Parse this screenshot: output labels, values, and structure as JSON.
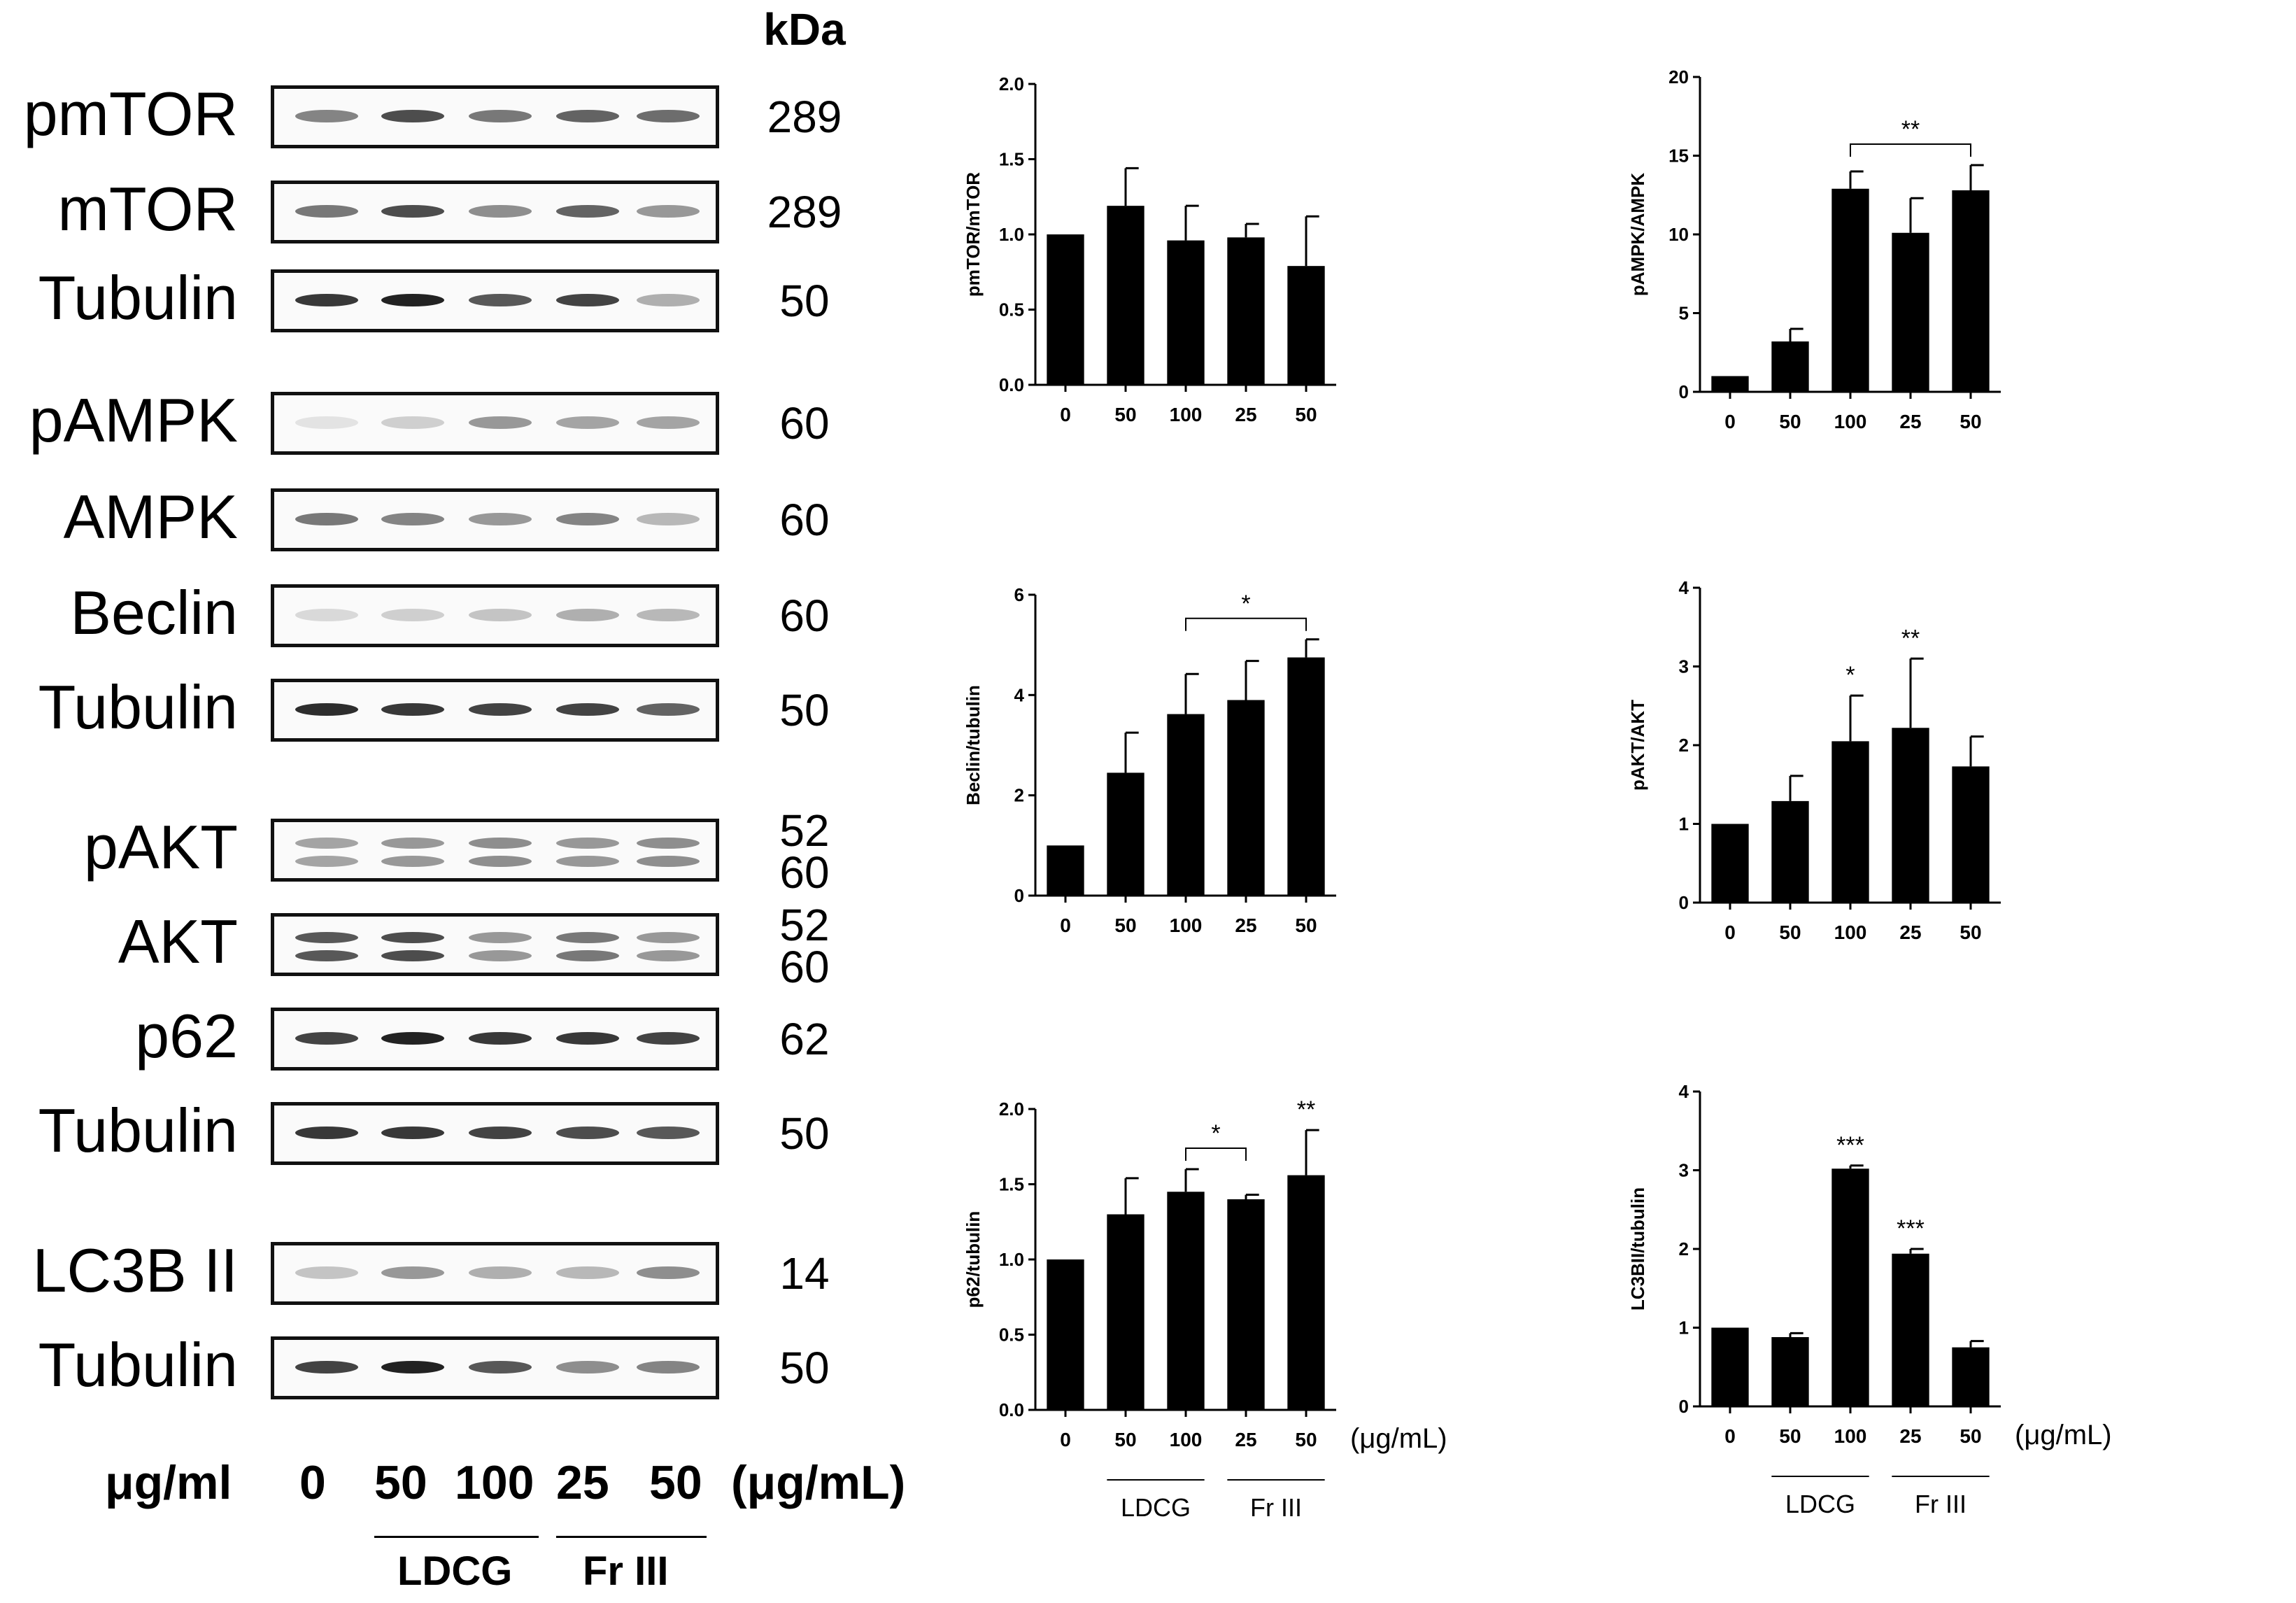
{
  "kda_header": "kDa",
  "blots": [
    {
      "label": "pmTOR",
      "kda": "289",
      "bands": 1
    },
    {
      "label": "mTOR",
      "kda": "289",
      "bands": 1
    },
    {
      "label": "Tubulin",
      "kda": "50",
      "bands": 1
    },
    {
      "label": "pAMPK",
      "kda": "60",
      "bands": 1
    },
    {
      "label": "AMPK",
      "kda": "60",
      "bands": 1
    },
    {
      "label": "Beclin",
      "kda": "60",
      "bands": 1
    },
    {
      "label": "Tubulin",
      "kda": "50",
      "bands": 1
    },
    {
      "label": "pAKT",
      "kda": "52",
      "kda2": "60",
      "bands": 2
    },
    {
      "label": "AKT",
      "kda": "52",
      "kda2": "60",
      "bands": 2
    },
    {
      "label": "p62",
      "kda": "62",
      "bands": 1
    },
    {
      "label": "Tubulin",
      "kda": "50",
      "bands": 1
    },
    {
      "label": "LC3B II",
      "kda": "14",
      "bands": 1
    },
    {
      "label": "Tubulin",
      "kda": "50",
      "bands": 1
    }
  ],
  "blot_intensity": [
    [
      0.55,
      0.8,
      0.6,
      0.7,
      0.65
    ],
    [
      0.6,
      0.8,
      0.5,
      0.7,
      0.45
    ],
    [
      0.9,
      1.0,
      0.75,
      0.85,
      0.35
    ],
    [
      0.1,
      0.2,
      0.45,
      0.4,
      0.4
    ],
    [
      0.6,
      0.55,
      0.45,
      0.55,
      0.3
    ],
    [
      0.15,
      0.2,
      0.25,
      0.35,
      0.3
    ],
    [
      0.95,
      0.9,
      0.85,
      0.85,
      0.7
    ],
    [
      0.4,
      0.45,
      0.5,
      0.45,
      0.5
    ],
    [
      0.75,
      0.8,
      0.45,
      0.6,
      0.45
    ],
    [
      0.85,
      1.0,
      0.9,
      0.9,
      0.85
    ],
    [
      0.9,
      0.9,
      0.85,
      0.8,
      0.75
    ],
    [
      0.25,
      0.45,
      0.35,
      0.3,
      0.5
    ],
    [
      0.85,
      1.0,
      0.75,
      0.5,
      0.55
    ]
  ],
  "blot_axis": {
    "unit_left": "μg/ml",
    "unit_right": "(μg/mL)",
    "concentrations": [
      "0",
      "50",
      "100",
      "25",
      "50"
    ],
    "groups": [
      "LDCG",
      "Fr III"
    ]
  },
  "chart_data": [
    {
      "type": "bar",
      "title": "",
      "ylabel": "pmTOR/mTOR",
      "xlabel": "",
      "categories": [
        "0",
        "50",
        "100",
        "25",
        "50"
      ],
      "values": [
        1.0,
        1.19,
        0.96,
        0.98,
        0.79
      ],
      "errors": [
        0.0,
        0.25,
        0.23,
        0.09,
        0.33
      ],
      "ylim": [
        0,
        2.0
      ],
      "yticks": [
        "0.0",
        "0.5",
        "1.0",
        "1.5",
        "2.0"
      ],
      "significance": []
    },
    {
      "type": "bar",
      "title": "",
      "ylabel": "pAMPK/AMPK",
      "xlabel": "",
      "categories": [
        "0",
        "50",
        "100",
        "25",
        "50"
      ],
      "values": [
        1.0,
        3.2,
        12.9,
        10.1,
        12.8
      ],
      "errors": [
        0.0,
        0.8,
        1.1,
        2.2,
        1.6
      ],
      "ylim": [
        0,
        20
      ],
      "yticks": [
        "0",
        "5",
        "10",
        "15",
        "20"
      ],
      "significance": [
        {
          "type": "bracket",
          "from": 2,
          "to": 4,
          "label": "**"
        }
      ]
    },
    {
      "type": "bar",
      "title": "",
      "ylabel": "Beclin/tubulin",
      "xlabel": "",
      "categories": [
        "0",
        "50",
        "100",
        "25",
        "50"
      ],
      "values": [
        1.0,
        2.45,
        3.62,
        3.9,
        4.75
      ],
      "errors": [
        0.0,
        0.8,
        0.8,
        0.78,
        0.36
      ],
      "ylim": [
        0,
        6
      ],
      "yticks": [
        "0",
        "2",
        "4",
        "6"
      ],
      "significance": [
        {
          "type": "bracket",
          "from": 2,
          "to": 4,
          "label": "*"
        }
      ]
    },
    {
      "type": "bar",
      "title": "",
      "ylabel": "pAKT/AKT",
      "xlabel": "",
      "categories": [
        "0",
        "50",
        "100",
        "25",
        "50"
      ],
      "values": [
        1.0,
        1.29,
        2.05,
        2.22,
        1.73
      ],
      "errors": [
        0.0,
        0.32,
        0.58,
        0.88,
        0.38
      ],
      "ylim": [
        0,
        4
      ],
      "yticks": [
        "0",
        "1",
        "2",
        "3",
        "4"
      ],
      "significance": [
        {
          "type": "star",
          "at": 2,
          "label": "*"
        },
        {
          "type": "star",
          "at": 3,
          "label": "**"
        }
      ]
    },
    {
      "type": "bar",
      "title": "",
      "ylabel": "p62/tubulin",
      "xlabel": "(μg/mL)",
      "categories": [
        "0",
        "50",
        "100",
        "25",
        "50"
      ],
      "values": [
        1.0,
        1.3,
        1.45,
        1.4,
        1.56
      ],
      "errors": [
        0.0,
        0.24,
        0.15,
        0.03,
        0.3
      ],
      "ylim": [
        0,
        2.0
      ],
      "yticks": [
        "0.0",
        "0.5",
        "1.0",
        "1.5",
        "2.0"
      ],
      "significance": [
        {
          "type": "bracket",
          "from": 2,
          "to": 3,
          "label": "*"
        },
        {
          "type": "star",
          "at": 4,
          "label": "**"
        }
      ],
      "groups": [
        "LDCG",
        "Fr III"
      ]
    },
    {
      "type": "bar",
      "title": "",
      "ylabel": "LC3BII/tubulin",
      "xlabel": "(μg/mL)",
      "categories": [
        "0",
        "50",
        "100",
        "25",
        "50"
      ],
      "values": [
        1.0,
        0.88,
        3.02,
        1.94,
        0.75
      ],
      "errors": [
        0.0,
        0.05,
        0.04,
        0.06,
        0.08
      ],
      "ylim": [
        0,
        4
      ],
      "yticks": [
        "0",
        "1",
        "2",
        "3",
        "4"
      ],
      "significance": [
        {
          "type": "star",
          "at": 2,
          "label": "***"
        },
        {
          "type": "star",
          "at": 3,
          "label": "***"
        }
      ],
      "groups": [
        "LDCG",
        "Fr III"
      ]
    }
  ]
}
